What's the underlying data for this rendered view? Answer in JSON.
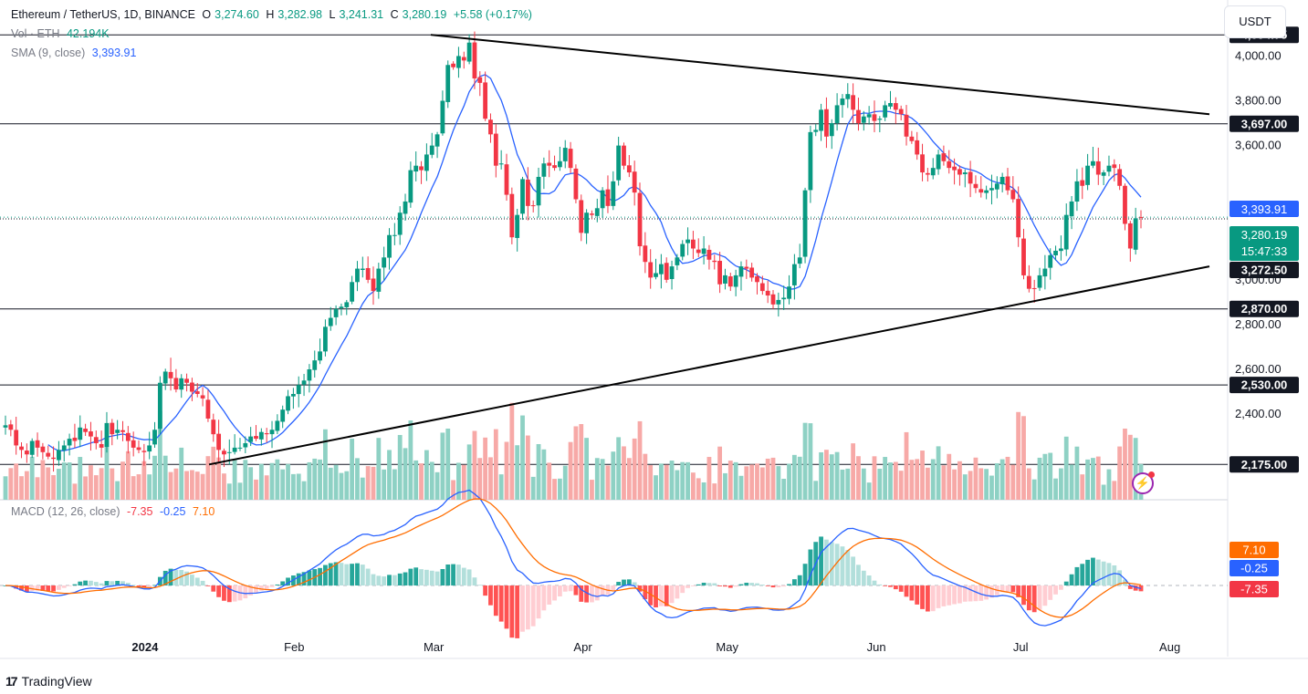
{
  "header": {
    "symbol": "Ethereum / TetherUS, 1D, BINANCE",
    "o_label": "O",
    "o_value": "3,274.60",
    "h_label": "H",
    "h_value": "3,282.98",
    "l_label": "L",
    "l_value": "3,241.31",
    "c_label": "C",
    "c_value": "3,280.19",
    "change": "+5.58 (+0.17%)",
    "vol_label": "Vol · ETH",
    "vol_value": "42.194K",
    "sma_label": "SMA (9, close)",
    "sma_value": "3,393.91",
    "macd_label": "MACD (12, 26, close)",
    "macd_hist": "-7.35",
    "macd_line": "-0.25",
    "macd_signal": "7.10"
  },
  "currency_button": "USDT",
  "brand": "TradingView",
  "colors": {
    "up": "#089981",
    "down": "#f23645",
    "sma": "#2962ff",
    "macd_line": "#2962ff",
    "signal_line": "#ff6d00",
    "vol_up": "#8ed1c4",
    "vol_down": "#f7a9a7"
  },
  "icons": [
    "flash-icon",
    "tradingview-logo-icon"
  ],
  "chart_data": {
    "type": "candlestick",
    "price_axis_ticks": [
      "4,000.00",
      "3,800.00",
      "3,600.00",
      "3,000.00",
      "2,800.00",
      "2,600.00",
      "2,400.00"
    ],
    "time_axis_ticks": [
      "2024",
      "Feb",
      "Mar",
      "Apr",
      "May",
      "Jun",
      "Jul",
      "Aug"
    ],
    "price_labels": [
      {
        "value": "4,094.75",
        "kind": "hline"
      },
      {
        "value": "3,697.00",
        "kind": "hline"
      },
      {
        "value": "3,393.91",
        "kind": "sma"
      },
      {
        "value": "3,280.19",
        "kind": "last"
      },
      {
        "value": "15:47:33",
        "kind": "countdown"
      },
      {
        "value": "3,272.50",
        "kind": "hline"
      },
      {
        "value": "2,870.00",
        "kind": "hline"
      },
      {
        "value": "2,530.00",
        "kind": "hline"
      },
      {
        "value": "2,175.00",
        "kind": "hline"
      }
    ],
    "horizontal_levels": [
      4094.75,
      3697,
      3272.5,
      2870,
      2530,
      2175
    ],
    "last_price": 3280.19,
    "trendlines": [
      {
        "from": [
          "2024-03-09",
          4094.75
        ],
        "to": [
          "2024-08-01",
          3740
        ]
      },
      {
        "from": [
          "2024-01-18",
          2175
        ],
        "to": [
          "2024-08-01",
          3060
        ]
      }
    ],
    "closes": [
      2350,
      2330,
      2260,
      2240,
      2220,
      2280,
      2250,
      2230,
      2210,
      2200,
      2240,
      2260,
      2290,
      2280,
      2340,
      2320,
      2300,
      2270,
      2250,
      2360,
      2310,
      2330,
      2320,
      2280,
      2250,
      2240,
      2230,
      2260,
      2330,
      2540,
      2590,
      2560,
      2510,
      2560,
      2540,
      2500,
      2490,
      2470,
      2380,
      2310,
      2240,
      2220,
      2230,
      2250,
      2250,
      2270,
      2300,
      2290,
      2320,
      2310,
      2330,
      2370,
      2420,
      2480,
      2490,
      2530,
      2550,
      2600,
      2640,
      2680,
      2790,
      2830,
      2870,
      2880,
      2900,
      2990,
      3050,
      3050,
      3000,
      2950,
      3050,
      3100,
      3200,
      3200,
      3300,
      3350,
      3490,
      3510,
      3490,
      3560,
      3600,
      3650,
      3800,
      3960,
      3950,
      4000,
      3980,
      4060,
      3900,
      3880,
      3720,
      3650,
      3510,
      3520,
      3380,
      3190,
      3290,
      3450,
      3330,
      3330,
      3460,
      3520,
      3510,
      3500,
      3530,
      3590,
      3500,
      3360,
      3210,
      3300,
      3290,
      3320,
      3400,
      3330,
      3440,
      3600,
      3510,
      3480,
      3390,
      3150,
      3080,
      3010,
      3030,
      3070,
      3000,
      3060,
      3100,
      3160,
      3180,
      3140,
      3120,
      3140,
      3090,
      3080,
      2980,
      3020,
      2970,
      3020,
      3060,
      3050,
      3010,
      2990,
      2950,
      2930,
      2890,
      2910,
      2920,
      2970,
      3070,
      3100,
      3400,
      3660,
      3670,
      3760,
      3640,
      3700,
      3780,
      3810,
      3830,
      3760,
      3700,
      3730,
      3740,
      3710,
      3720,
      3780,
      3790,
      3760,
      3740,
      3640,
      3620,
      3560,
      3480,
      3470,
      3500,
      3560,
      3530,
      3500,
      3490,
      3470,
      3480,
      3430,
      3410,
      3390,
      3400,
      3410,
      3430,
      3460,
      3400,
      3360,
      3190,
      3020,
      2960,
      2960,
      3020,
      3050,
      3110,
      3130,
      3140,
      3290,
      3350,
      3440,
      3420,
      3510,
      3530,
      3470,
      3480,
      3510,
      3500,
      3420,
      3250,
      3140,
      3275,
      3280
    ],
    "sma9_last": 3393.91,
    "macd": {
      "macd": -0.25,
      "signal": 7.1,
      "histogram": -7.35
    }
  }
}
